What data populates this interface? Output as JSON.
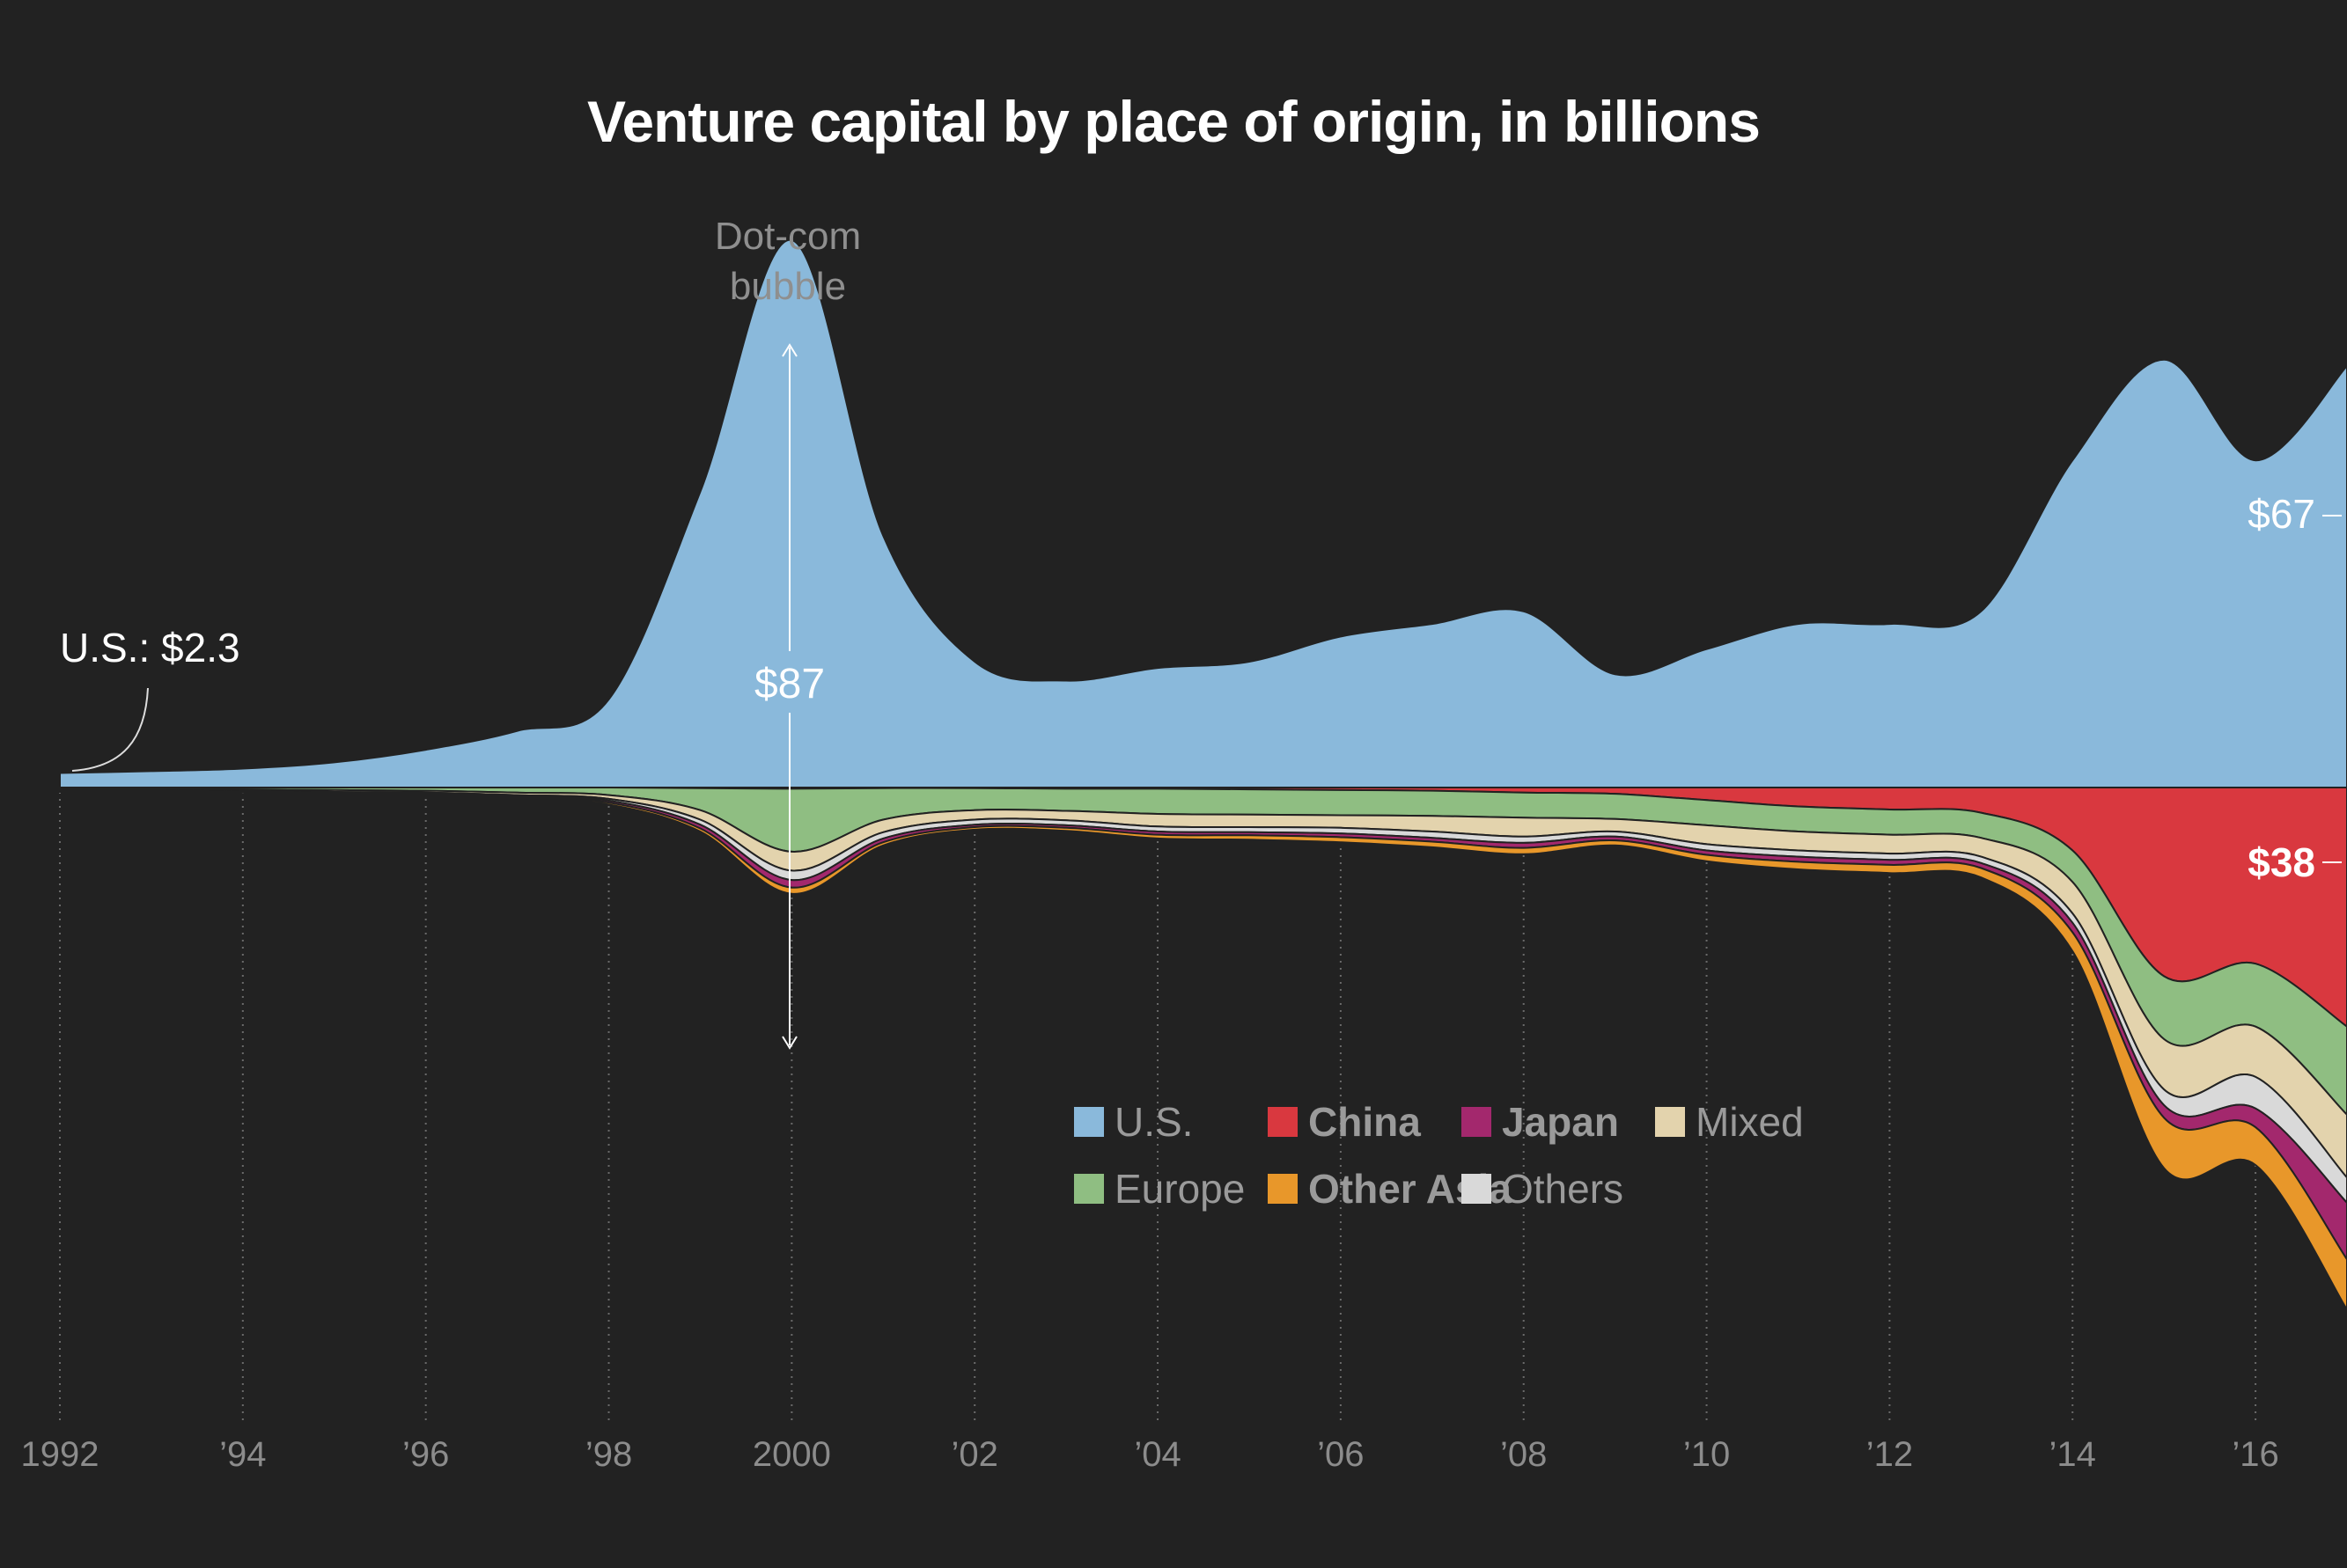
{
  "title": "Venture capital by place of origin, in billions",
  "legend": [
    {
      "label": "U.S.",
      "color": "#8ab9db",
      "bold": false
    },
    {
      "label": "China",
      "color": "#d9383f",
      "bold": true
    },
    {
      "label": "Japan",
      "color": "#a3286d",
      "bold": true
    },
    {
      "label": "Mixed",
      "color": "#e3d3ad",
      "bold": false
    },
    {
      "label": "Europe",
      "color": "#8fbe82",
      "bold": false
    },
    {
      "label": "Other Asia",
      "color": "#e8972a",
      "bold": true
    },
    {
      "label": "Others",
      "color": "#d9d9d9",
      "bold": false
    }
  ],
  "annotations": {
    "dotcom_line1": "Dot-com",
    "dotcom_line2": "bubble",
    "us_start": "U.S.: $2.3",
    "peak": "$87",
    "us_end": "$67",
    "china_end": "$38"
  },
  "chart_data": {
    "type": "area",
    "title": "Venture capital by place of origin, in billions",
    "x_tick_labels": [
      "1992",
      "’94",
      "’96",
      "’98",
      "2000",
      "’02",
      "’04",
      "’06",
      "’08",
      "’10",
      "’12",
      "’14",
      "’16"
    ],
    "x": [
      1992,
      1993,
      1994,
      1995,
      1996,
      1997,
      1998,
      1999,
      2000,
      2001,
      2002,
      2003,
      2004,
      2005,
      2006,
      2007,
      2008,
      2009,
      2010,
      2011,
      2012,
      2013,
      2014,
      2015,
      2016,
      2017
    ],
    "series": [
      {
        "name": "U.S.",
        "color": "#8ab9db",
        "values": [
          2.3,
          2.6,
          3.0,
          4.0,
          6.0,
          9.0,
          14.0,
          47,
          87,
          40,
          20,
          17,
          19,
          20,
          24,
          26,
          28,
          18,
          22,
          26,
          26,
          28,
          52,
          68,
          52,
          67
        ]
      },
      {
        "name": "China",
        "color": "#d9383f",
        "values": [
          0,
          0,
          0,
          0,
          0,
          0,
          0,
          0.1,
          0.2,
          0.1,
          0.1,
          0.2,
          0.2,
          0.3,
          0.4,
          0.5,
          0.8,
          1.0,
          2.0,
          3.0,
          3.5,
          4.0,
          10,
          30,
          28,
          38
        ]
      },
      {
        "name": "Europe",
        "color": "#8fbe82",
        "values": [
          0.2,
          0.2,
          0.3,
          0.4,
          0.5,
          0.8,
          1.2,
          3.5,
          10,
          5,
          3.5,
          3.5,
          4,
          4,
          4,
          4,
          4,
          4,
          4,
          4,
          4,
          4,
          5,
          10,
          10,
          14
        ]
      },
      {
        "name": "Mixed",
        "color": "#e3d3ad",
        "values": [
          0.2,
          0.2,
          0.2,
          0.3,
          0.3,
          0.4,
          0.6,
          1.5,
          3,
          2,
          1.5,
          1.5,
          2,
          2,
          2,
          2.5,
          3,
          2,
          3,
          3,
          3,
          3,
          5,
          8,
          8,
          10
        ]
      },
      {
        "name": "Others",
        "color": "#d9d9d9",
        "values": [
          0.1,
          0.1,
          0.1,
          0.1,
          0.2,
          0.2,
          0.3,
          0.8,
          1.5,
          1,
          0.8,
          0.8,
          0.8,
          0.8,
          0.9,
          1,
          1,
          0.8,
          1,
          1,
          1,
          1,
          1.5,
          2.5,
          5,
          4
        ]
      },
      {
        "name": "Japan",
        "color": "#a3286d",
        "values": [
          0.1,
          0.1,
          0.1,
          0.1,
          0.2,
          0.2,
          0.3,
          0.6,
          1.2,
          0.6,
          0.4,
          0.4,
          0.5,
          0.5,
          0.6,
          0.6,
          0.8,
          0.6,
          0.7,
          0.8,
          0.8,
          0.8,
          1.5,
          2,
          3,
          9
        ]
      },
      {
        "name": "Other Asia",
        "color": "#e8972a",
        "values": [
          0.1,
          0.1,
          0.1,
          0.1,
          0.2,
          0.2,
          0.3,
          0.5,
          1.0,
          0.5,
          0.4,
          0.5,
          0.6,
          0.7,
          0.8,
          0.9,
          1,
          0.8,
          1,
          1.2,
          1.3,
          1.5,
          3,
          8,
          6,
          8
        ]
      }
    ],
    "legend_position": "bottom-right",
    "grid": "vertical dotted lines at ticks"
  }
}
